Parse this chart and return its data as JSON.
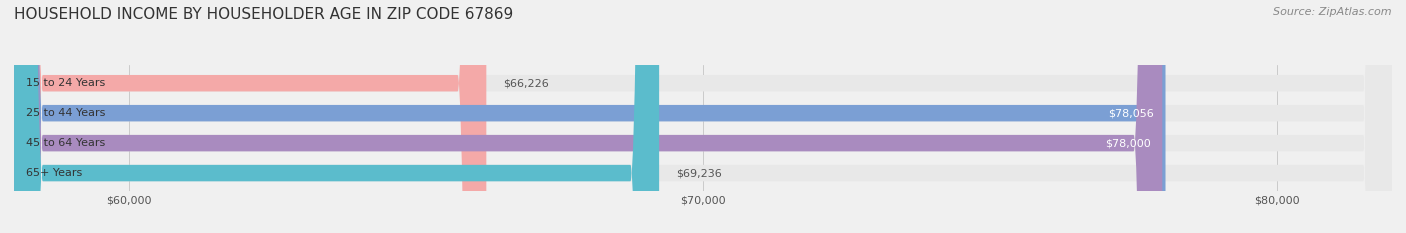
{
  "title": "HOUSEHOLD INCOME BY HOUSEHOLDER AGE IN ZIP CODE 67869",
  "source": "Source: ZipAtlas.com",
  "categories": [
    "15 to 24 Years",
    "25 to 44 Years",
    "45 to 64 Years",
    "65+ Years"
  ],
  "values": [
    66226,
    78056,
    78000,
    69236
  ],
  "bar_colors": [
    "#f4a9a8",
    "#7b9fd4",
    "#a98bbf",
    "#5bbccc"
  ],
  "label_colors": [
    "#555555",
    "#ffffff",
    "#ffffff",
    "#555555"
  ],
  "value_labels": [
    "$66,226",
    "$78,056",
    "$78,000",
    "$69,236"
  ],
  "xmin": 58000,
  "xmax": 82000,
  "xticks": [
    60000,
    70000,
    80000
  ],
  "xticklabels": [
    "$60,000",
    "$70,000",
    "$80,000"
  ],
  "background_color": "#f0f0f0",
  "bar_background_color": "#e8e8e8",
  "title_fontsize": 11,
  "source_fontsize": 8,
  "tick_fontsize": 8,
  "label_fontsize": 8,
  "value_fontsize": 8
}
